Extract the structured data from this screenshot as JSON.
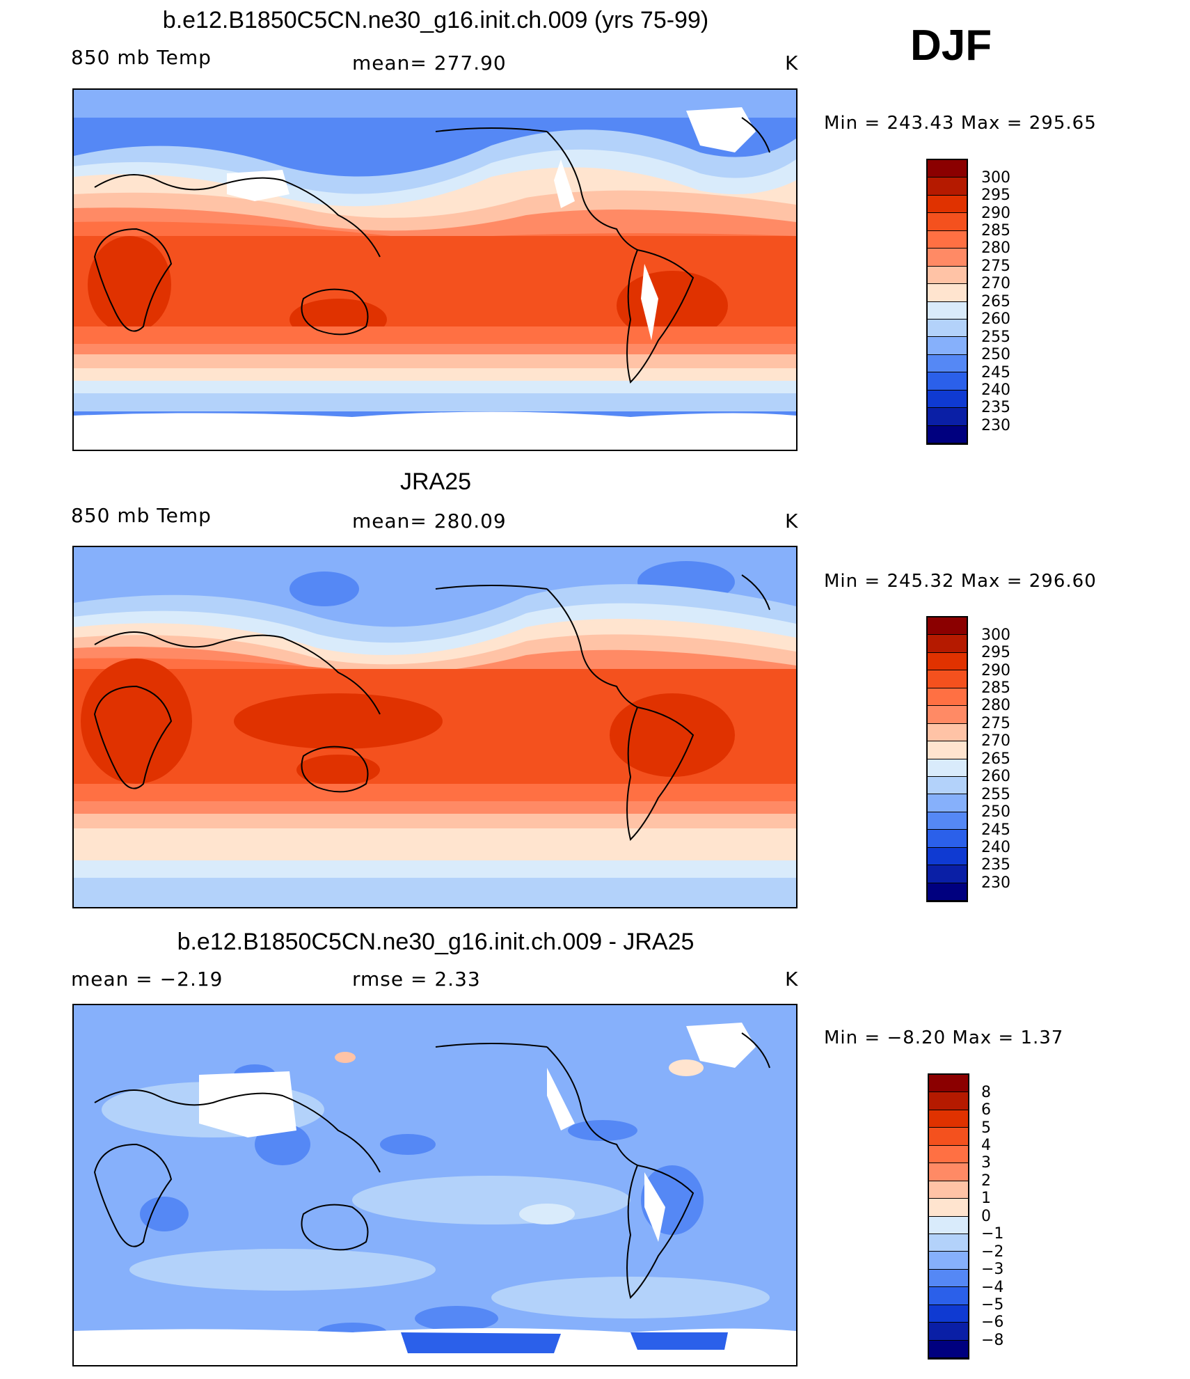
{
  "season": "DJF",
  "units": "K",
  "panels": [
    {
      "title": "b.e12.B1850C5CN.ne30_g16.init.ch.009 (yrs 75-99)",
      "left_label": "850 mb Temp",
      "center_label": "mean=  277.90",
      "units": "K",
      "minmax": "Min  =  243.43  Max  =  295.65"
    },
    {
      "title": "JRA25",
      "left_label": "850 mb Temp",
      "center_label": "mean=  280.09",
      "units": "K",
      "minmax": "Min  =  245.32  Max  =  296.60"
    },
    {
      "title": "b.e12.B1850C5CN.ne30_g16.init.ch.009 - JRA25",
      "left_label": "mean  =    −2.19",
      "center_label": "rmse  =     2.33",
      "units": "K",
      "minmax": "Min  =    −8.20  Max  =     1.37"
    }
  ],
  "colorbar_temp": {
    "labels": [
      "300",
      "295",
      "290",
      "285",
      "280",
      "275",
      "270",
      "265",
      "260",
      "255",
      "250",
      "245",
      "240",
      "235",
      "230"
    ],
    "colors": [
      "#8b0000",
      "#b51a00",
      "#e03200",
      "#f4511e",
      "#ff7043",
      "#ff8a65",
      "#ffc3a6",
      "#ffe4cf",
      "#d9ebfb",
      "#b3d2fa",
      "#86b0fb",
      "#5588f5",
      "#2b60ea",
      "#0f3ad2",
      "#0a1fa6",
      "#00007f"
    ]
  },
  "colorbar_diff": {
    "labels": [
      "8",
      "6",
      "5",
      "4",
      "3",
      "2",
      "1",
      "0",
      "−1",
      "−2",
      "−3",
      "−4",
      "−5",
      "−6",
      "−8"
    ],
    "colors": [
      "#8b0000",
      "#b51a00",
      "#e03200",
      "#f4511e",
      "#ff7043",
      "#ff8a65",
      "#ffc3a6",
      "#ffe4cf",
      "#d9ebfb",
      "#b3d2fa",
      "#86b0fb",
      "#5588f5",
      "#2b60ea",
      "#0f3ad2",
      "#0a1fa6",
      "#00007f"
    ]
  }
}
